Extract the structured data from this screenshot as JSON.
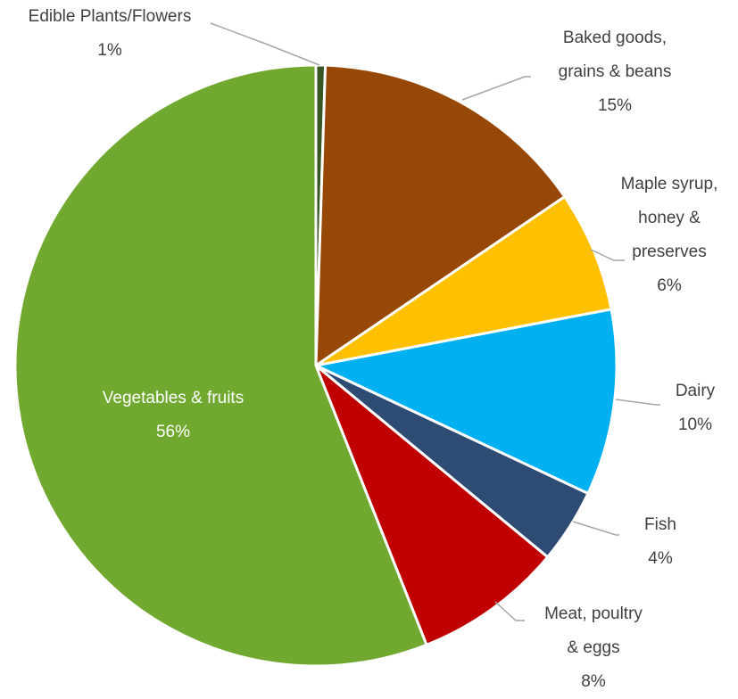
{
  "chart_data": {
    "type": "pie",
    "start_angle_deg": 0,
    "direction": "clockwise",
    "slices": [
      {
        "label": "Edible Plants/Flowers",
        "lines": [
          "Edible Plants/Flowers"
        ],
        "value": 0.5,
        "display": "1%",
        "color": "#375623"
      },
      {
        "label": "Baked goods, grains & beans",
        "lines": [
          "Baked goods,",
          "grains & beans"
        ],
        "value": 15,
        "display": "15%",
        "color": "#974706"
      },
      {
        "label": "Maple syrup, honey & preserves",
        "lines": [
          "Maple syrup,",
          "honey &",
          "preserves"
        ],
        "value": 6.5,
        "display": "6%",
        "color": "#FFC000"
      },
      {
        "label": "Dairy",
        "lines": [
          "Dairy"
        ],
        "value": 10,
        "display": "10%",
        "color": "#00B0F0"
      },
      {
        "label": "Fish",
        "lines": [
          "Fish"
        ],
        "value": 4,
        "display": "4%",
        "color": "#2E4B73"
      },
      {
        "label": "Meat, poultry & eggs",
        "lines": [
          "Meat, poultry",
          "& eggs"
        ],
        "value": 8,
        "display": "8%",
        "color": "#C00000"
      },
      {
        "label": "Vegetables & fruits",
        "lines": [
          "Vegetables & fruits"
        ],
        "value": 56,
        "display": "56%",
        "color": "#70A830"
      }
    ]
  }
}
